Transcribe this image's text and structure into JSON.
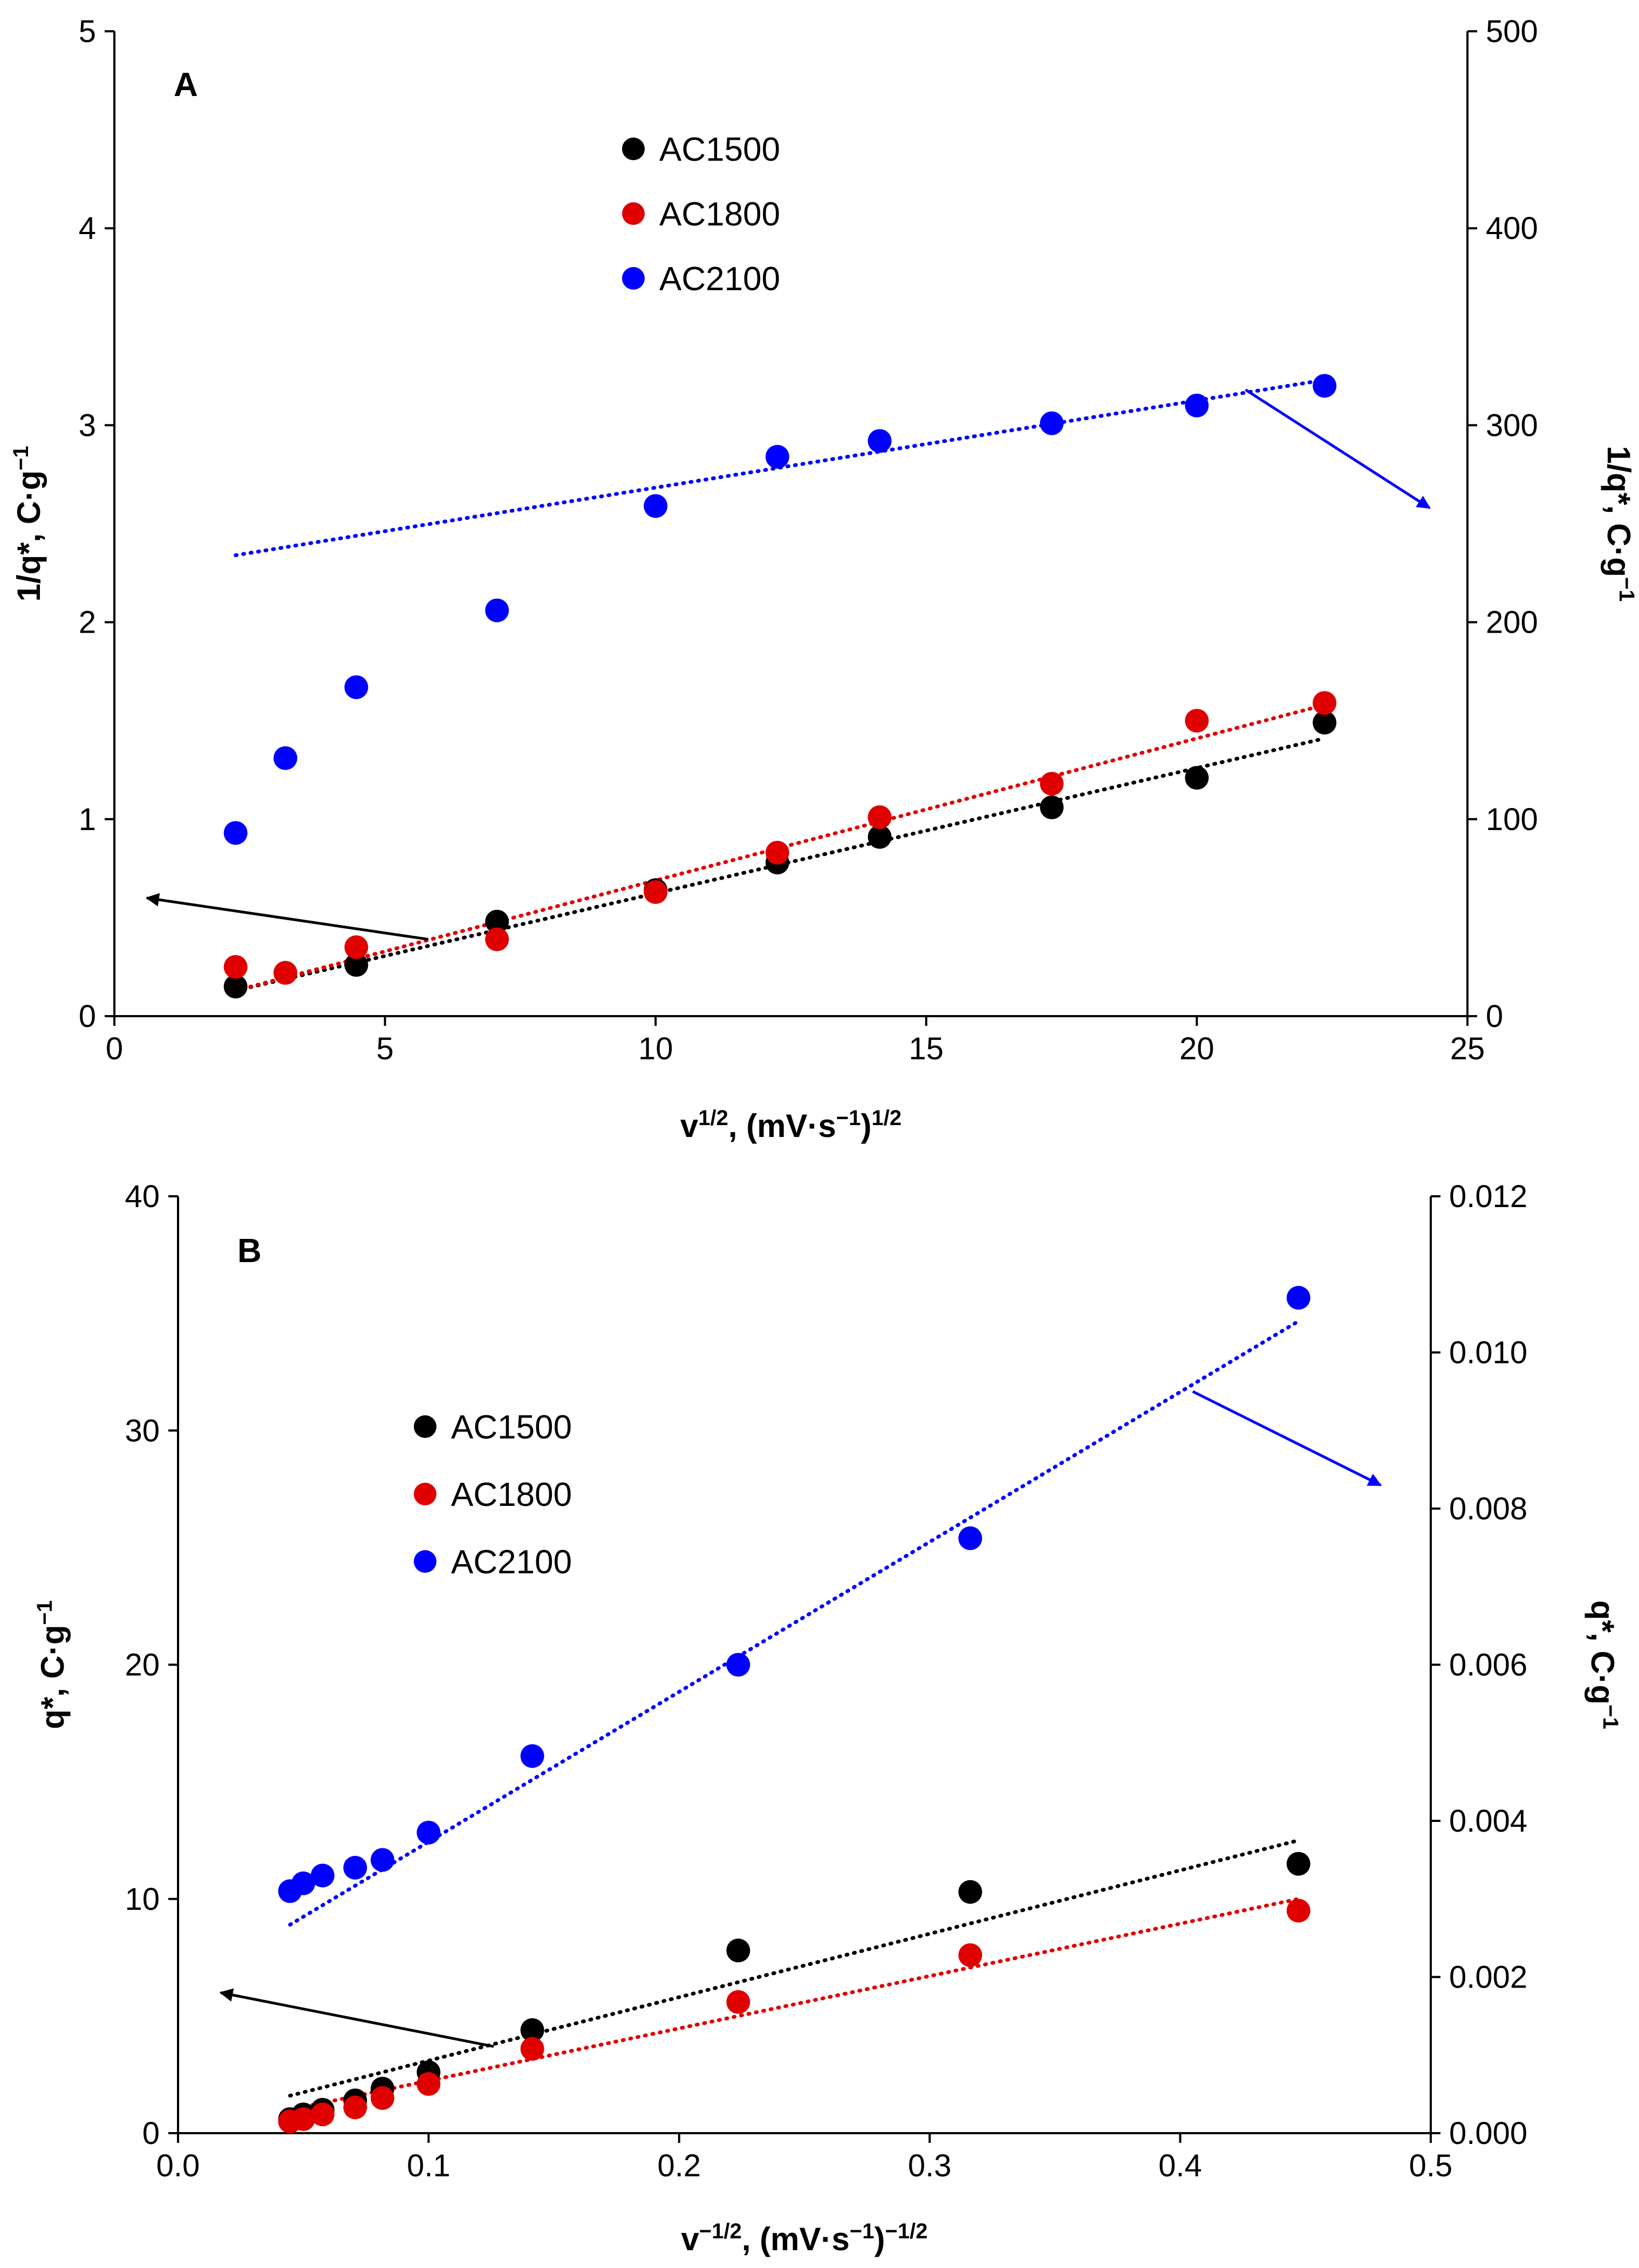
{
  "chart_data": [
    {
      "type": "scatter",
      "panel_label": "A",
      "x_axis": {
        "label_main": "v",
        "label_sup": "1/2",
        "label_rest": ", (mV·s",
        "label_sup2": "−1",
        "label_end": ")",
        "label_sup3": "1/2",
        "range": [
          0,
          25
        ],
        "ticks": [
          0,
          5,
          10,
          15,
          20,
          25
        ],
        "tick_labels": [
          "0",
          "5",
          "10",
          "15",
          "20",
          "25"
        ]
      },
      "y_left": {
        "label_main": "1/q*, C·g",
        "label_sup": "−1",
        "range": [
          0,
          5
        ],
        "ticks": [
          0,
          1,
          2,
          3,
          4,
          5
        ],
        "tick_labels": [
          "0",
          "1",
          "2",
          "3",
          "4",
          "5"
        ]
      },
      "y_right": {
        "label_main": "1/q*, C·g",
        "label_sup": "−1",
        "range": [
          0,
          500
        ],
        "ticks": [
          0,
          100,
          200,
          300,
          400,
          500
        ],
        "tick_labels": [
          "0",
          "100",
          "200",
          "300",
          "400",
          "500"
        ]
      },
      "series": [
        {
          "name": "AC1500",
          "color": "#000000",
          "axis": "left",
          "x": [
            2.24,
            3.16,
            4.47,
            7.07,
            10.0,
            12.25,
            14.14,
            17.32,
            20.0,
            22.36
          ],
          "y": [
            0.15,
            0.22,
            0.26,
            0.48,
            0.64,
            0.78,
            0.91,
            1.06,
            1.21,
            1.49
          ],
          "trendline": {
            "x": [
              2.24,
              22.36
            ],
            "y": [
              0.13,
              1.41
            ]
          }
        },
        {
          "name": "AC1800",
          "color": "#e00000",
          "axis": "left",
          "x": [
            2.24,
            3.16,
            4.47,
            7.07,
            10.0,
            12.25,
            14.14,
            17.32,
            20.0,
            22.36
          ],
          "y": [
            0.25,
            0.22,
            0.35,
            0.39,
            0.63,
            0.83,
            1.01,
            1.18,
            1.5,
            1.59
          ],
          "trendline": {
            "x": [
              2.24,
              22.36
            ],
            "y": [
              0.13,
              1.58
            ]
          }
        },
        {
          "name": "AC2100",
          "color": "#0000ff",
          "axis": "right",
          "x": [
            2.24,
            3.16,
            4.47,
            7.07,
            10.0,
            12.25,
            14.14,
            17.32,
            20.0,
            22.36
          ],
          "y": [
            93,
            131,
            167,
            206,
            259,
            284,
            292,
            301,
            310,
            320
          ],
          "trendline": {
            "x": [
              2.24,
              22.36
            ],
            "y": [
              234,
              323
            ]
          }
        }
      ],
      "annotations": [
        {
          "name": "left-axis-arrow",
          "color": "#000000",
          "from": [
            5.8,
            0.39
          ],
          "to": [
            0.6,
            0.6
          ],
          "axis": "left"
        },
        {
          "name": "right-axis-arrow",
          "color": "#0000ff",
          "from": [
            20.9,
            318
          ],
          "to": [
            24.3,
            258
          ],
          "axis": "right"
        }
      ]
    },
    {
      "type": "scatter",
      "panel_label": "B",
      "x_axis": {
        "label_main": "v",
        "label_sup": "−1/2",
        "label_rest": ", (mV·s",
        "label_sup2": "−1",
        "label_end": ")",
        "label_sup3": "−1/2",
        "range": [
          0,
          0.5
        ],
        "ticks": [
          0,
          0.1,
          0.2,
          0.3,
          0.4,
          0.5
        ],
        "tick_labels": [
          "0.0",
          "0.1",
          "0.2",
          "0.3",
          "0.4",
          "0.5"
        ]
      },
      "y_left": {
        "label_main": "q*, C·g",
        "label_sup": "−1",
        "range": [
          0,
          40
        ],
        "ticks": [
          0,
          10,
          20,
          30,
          40
        ],
        "tick_labels": [
          "0",
          "10",
          "20",
          "30",
          "40"
        ]
      },
      "y_right": {
        "label_main": "q*, C·g",
        "label_sup": "−1",
        "range": [
          0,
          0.012
        ],
        "ticks": [
          0,
          0.002,
          0.004,
          0.006,
          0.008,
          0.01,
          0.012
        ],
        "tick_labels": [
          "0.000",
          "0.002",
          "0.004",
          "0.006",
          "0.008",
          "0.010",
          "0.012"
        ]
      },
      "series": [
        {
          "name": "AC1500",
          "color": "#000000",
          "axis": "left",
          "x": [
            0.0447,
            0.05,
            0.0577,
            0.0707,
            0.0816,
            0.1,
            0.1414,
            0.2236,
            0.3162,
            0.4472
          ],
          "y": [
            0.6,
            0.8,
            1.0,
            1.4,
            1.9,
            2.6,
            4.4,
            7.8,
            10.3,
            11.5
          ],
          "trendline": {
            "x": [
              0.0447,
              0.4472
            ],
            "y": [
              1.6,
              12.5
            ]
          }
        },
        {
          "name": "AC1800",
          "color": "#e00000",
          "axis": "left",
          "x": [
            0.0447,
            0.05,
            0.0577,
            0.0707,
            0.0816,
            0.1,
            0.1414,
            0.2236,
            0.3162,
            0.4472
          ],
          "y": [
            0.5,
            0.6,
            0.8,
            1.1,
            1.5,
            2.1,
            3.6,
            5.6,
            7.6,
            9.5
          ],
          "trendline": {
            "x": [
              0.0447,
              0.4472
            ],
            "y": [
              1.0,
              10.0
            ]
          }
        },
        {
          "name": "AC2100",
          "color": "#0000ff",
          "axis": "right",
          "x": [
            0.0447,
            0.05,
            0.0577,
            0.0707,
            0.0816,
            0.1,
            0.1414,
            0.2236,
            0.3162,
            0.4472
          ],
          "y": [
            0.0031,
            0.0032,
            0.0033,
            0.0034,
            0.0035,
            0.00385,
            0.00483,
            0.006,
            0.00762,
            0.0107
          ],
          "trendline": {
            "x": [
              0.0447,
              0.4472
            ],
            "y": [
              0.00267,
              0.0104
            ]
          }
        }
      ],
      "annotations": [
        {
          "name": "left-axis-arrow",
          "color": "#000000",
          "from": [
            0.126,
            3.7
          ],
          "to": [
            0.017,
            6.0
          ],
          "axis": "left"
        },
        {
          "name": "right-axis-arrow",
          "color": "#0000ff",
          "from": [
            0.405,
            0.0095
          ],
          "to": [
            0.48,
            0.0083
          ],
          "axis": "right"
        }
      ]
    }
  ]
}
